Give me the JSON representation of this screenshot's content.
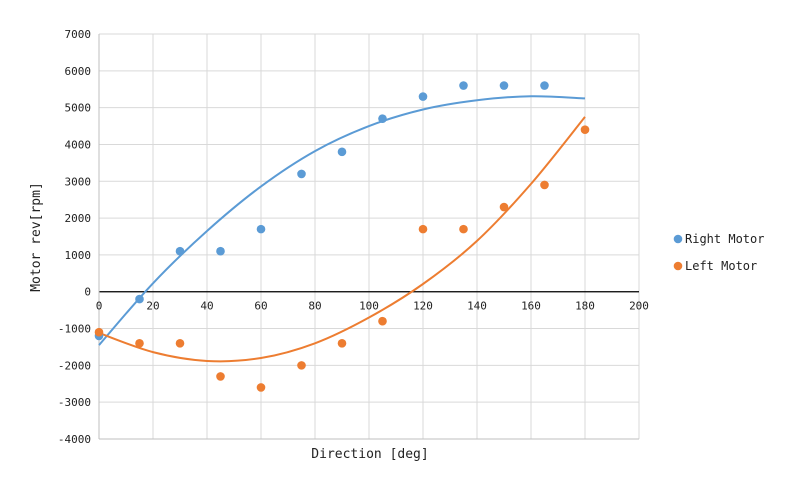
{
  "chart_data": {
    "type": "scatter",
    "xlabel": "Direction [deg]",
    "ylabel": "Motor rev[rpm]",
    "xlim": [
      0,
      200
    ],
    "ylim": [
      -4000,
      7000
    ],
    "xticks": [
      0,
      20,
      40,
      60,
      80,
      100,
      120,
      140,
      160,
      180,
      200
    ],
    "yticks": [
      -4000,
      -3000,
      -2000,
      -1000,
      0,
      1000,
      2000,
      3000,
      4000,
      5000,
      6000,
      7000
    ],
    "grid": true,
    "legend_position": "right",
    "series": [
      {
        "name": "Right Motor",
        "color": "#5b9bd5",
        "x": [
          0,
          15,
          30,
          45,
          60,
          75,
          90,
          105,
          120,
          135,
          150,
          165
        ],
        "y": [
          -1200,
          -200,
          1100,
          1100,
          1700,
          3200,
          3800,
          4700,
          5300,
          5600,
          5600,
          5600
        ],
        "trendline": {
          "type": "polynomial",
          "x": [
            0,
            20,
            40,
            60,
            80,
            100,
            120,
            140,
            160,
            180
          ],
          "y": [
            -1450,
            230,
            1650,
            2860,
            3820,
            4500,
            4950,
            5200,
            5310,
            5250
          ]
        }
      },
      {
        "name": "Left Motor",
        "color": "#ed7d31",
        "x": [
          0,
          15,
          30,
          45,
          60,
          75,
          90,
          105,
          120,
          135,
          150,
          165,
          180
        ],
        "y": [
          -1100,
          -1400,
          -1400,
          -2300,
          -2600,
          -2000,
          -1400,
          -800,
          1700,
          1700,
          2300,
          2900,
          4400
        ],
        "trendline": {
          "type": "polynomial",
          "x": [
            0,
            20,
            40,
            60,
            80,
            100,
            120,
            140,
            160,
            180
          ],
          "y": [
            -1120,
            -1640,
            -1880,
            -1800,
            -1400,
            -700,
            210,
            1380,
            2930,
            4750
          ]
        }
      }
    ]
  }
}
